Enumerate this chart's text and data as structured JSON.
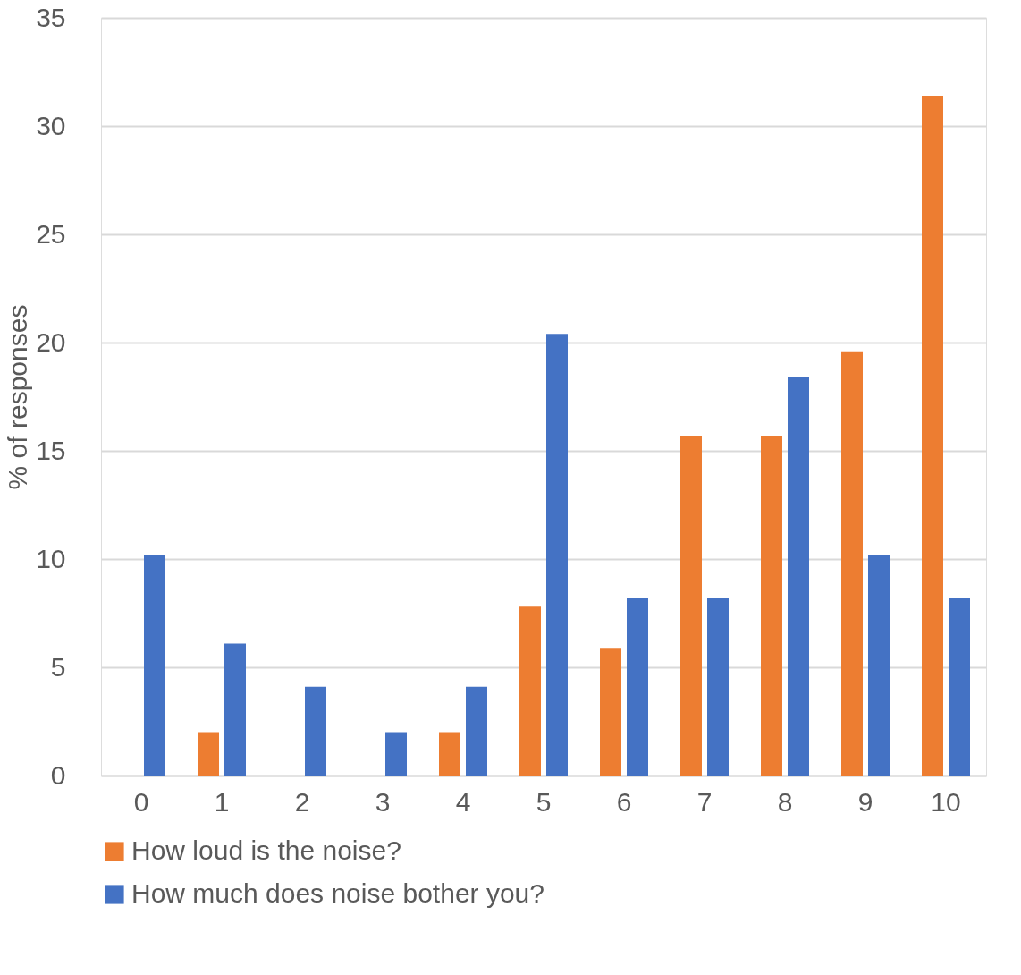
{
  "chart_data": {
    "type": "bar",
    "ylabel": "% of responses",
    "categories": [
      "0",
      "1",
      "2",
      "3",
      "4",
      "5",
      "6",
      "7",
      "8",
      "9",
      "10"
    ],
    "series": [
      {
        "name": "How loud is the noise?",
        "color": "#ed7d31",
        "values": [
          0,
          2.0,
          0,
          0,
          2.0,
          7.8,
          5.9,
          15.7,
          15.7,
          19.6,
          31.4
        ]
      },
      {
        "name": "How much does noise bother you?",
        "color": "#4472c4",
        "values": [
          10.2,
          6.1,
          4.1,
          2.0,
          4.1,
          20.4,
          8.2,
          8.2,
          18.4,
          10.2,
          8.2
        ]
      }
    ],
    "ylim": [
      0,
      35
    ],
    "yticks": [
      0,
      5,
      10,
      15,
      20,
      25,
      30,
      35
    ],
    "grid": "y",
    "legend": "bottom"
  }
}
